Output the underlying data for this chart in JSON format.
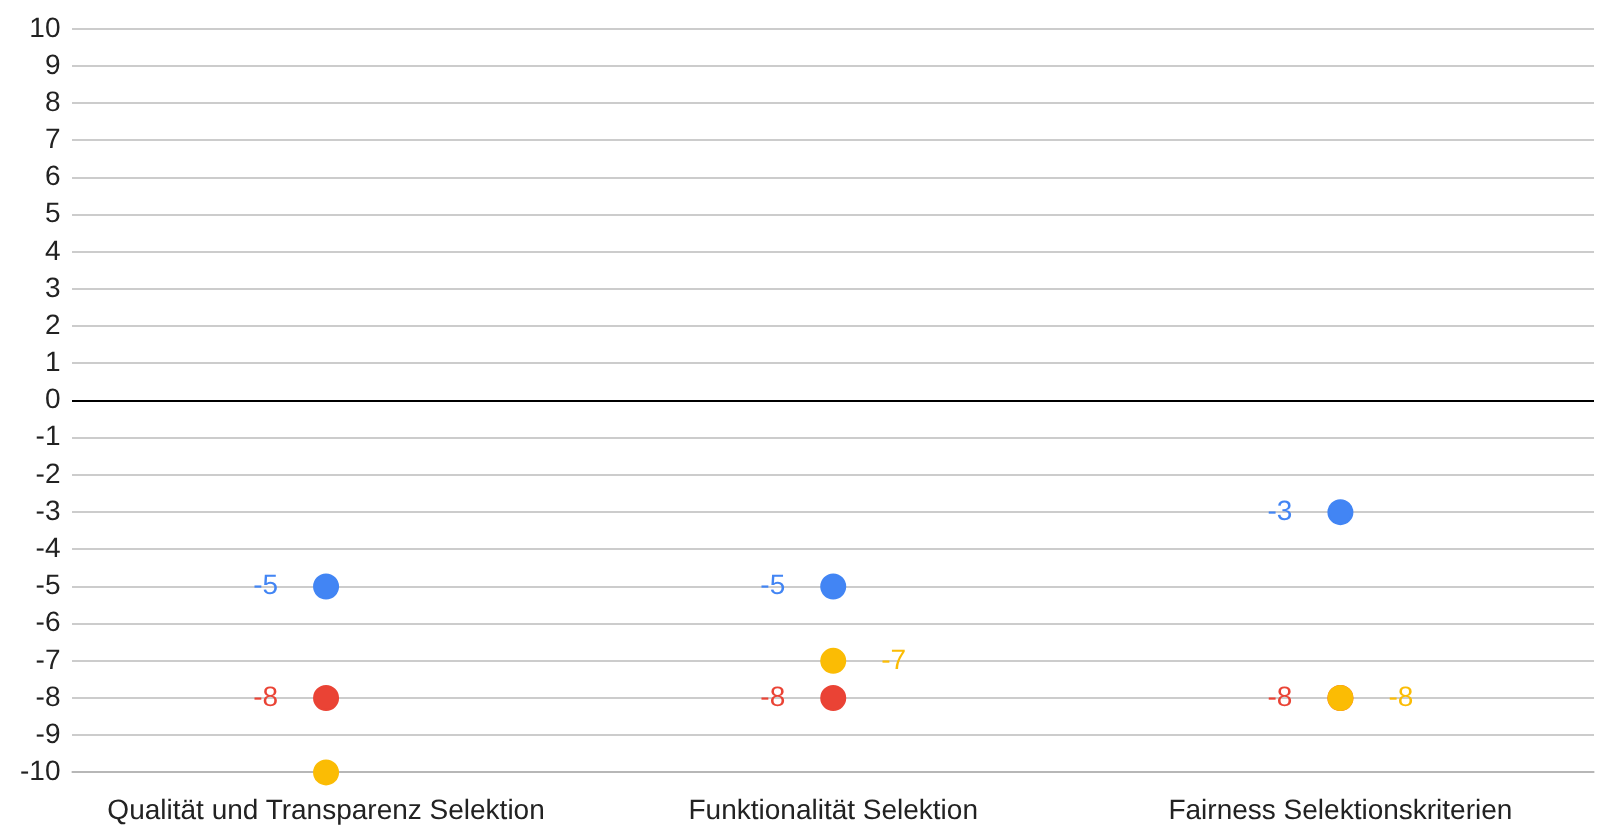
{
  "chart_data": {
    "type": "scatter",
    "categories": [
      "Qualität und Transparenz Selektion",
      "Funktionalität Selektion",
      "Fairness Selektionskriterien"
    ],
    "series": [
      {
        "color": "#4285f4",
        "values": [
          -5,
          -5,
          -3
        ],
        "value_labels": [
          "-5",
          "-5",
          "-3"
        ]
      },
      {
        "color": "#ea4335",
        "values": [
          -8,
          -8,
          -8
        ],
        "value_labels": [
          "-8",
          "-8",
          "-8"
        ]
      },
      {
        "color": "#fbbc04",
        "values": [
          -10,
          -7,
          -8
        ],
        "value_labels": [
          null,
          "-7",
          "-8"
        ]
      }
    ],
    "ylim": [
      -10,
      10
    ],
    "yticks": [
      -10,
      -9,
      -8,
      -7,
      -6,
      -5,
      -4,
      -3,
      -2,
      -1,
      0,
      1,
      2,
      3,
      4,
      5,
      6,
      7,
      8,
      9,
      10
    ],
    "grid": "y",
    "legend": false,
    "marker": "circle"
  }
}
